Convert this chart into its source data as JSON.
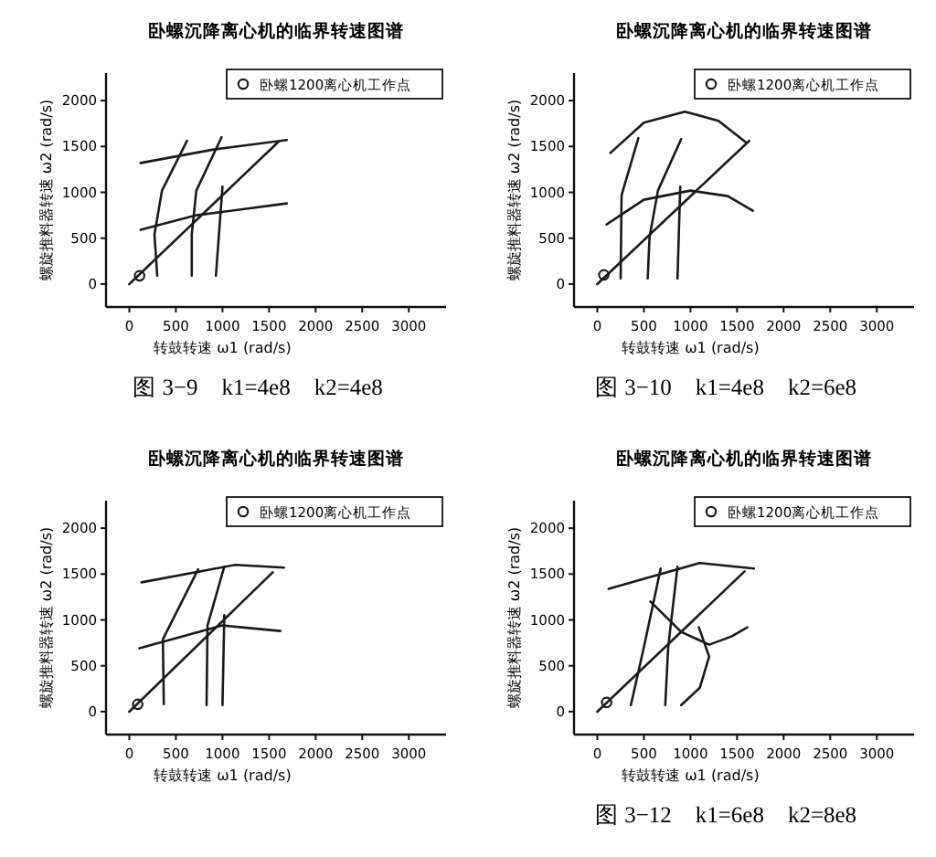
{
  "chart_data": [
    {
      "type": "line",
      "title": "卧螺沉降离心机的临界转速图谱",
      "xlabel": "转鼓转速 ω1 (rad/s)",
      "ylabel": "螺旋推料器转速 ω2 (rad/s)",
      "xlim": [
        -250,
        3400
      ],
      "ylim": [
        -250,
        2300
      ],
      "xticks": [
        0,
        500,
        1000,
        1500,
        2000,
        2500,
        3000
      ],
      "yticks": [
        0,
        500,
        1000,
        1500,
        2000
      ],
      "grid": false,
      "legend": "top right",
      "annotations": [
        "图 3−9　k1=4e8　k2=4e8"
      ],
      "series": [
        {
          "color": "#1a1a1a",
          "x": [
            120,
            920,
            1690
          ],
          "values": [
            1320,
            1470,
            1570
          ]
        },
        {
          "color": "#1a1a1a",
          "x": [
            120,
            720,
            1690
          ],
          "values": [
            590,
            750,
            880
          ]
        },
        {
          "color": "#1a1a1a",
          "x": [
            0,
            1600
          ],
          "values": [
            0,
            1550
          ]
        },
        {
          "color": "#1a1a1a",
          "x": [
            620,
            350,
            270,
            300
          ],
          "values": [
            1560,
            1020,
            540,
            90
          ]
        },
        {
          "color": "#1a1a1a",
          "x": [
            990,
            720,
            670,
            670
          ],
          "values": [
            1600,
            1020,
            540,
            90
          ]
        },
        {
          "color": "#1a1a1a",
          "x": [
            1000,
            930
          ],
          "values": [
            1060,
            90
          ]
        },
        {
          "type": "scatter",
          "name": "卧螺1200离心机工作点",
          "marker": "circle",
          "color": "#1a1a1a",
          "x": [
            110
          ],
          "values": [
            90
          ]
        }
      ]
    },
    {
      "type": "line",
      "title": "卧螺沉降离心机的临界转速图谱",
      "xlabel": "转鼓转速 ω1 (rad/s)",
      "ylabel": "螺旋推料器转速 ω2 (rad/s)",
      "xlim": [
        -250,
        3400
      ],
      "ylim": [
        -250,
        2300
      ],
      "xticks": [
        0,
        500,
        1000,
        1500,
        2000,
        2500,
        3000
      ],
      "yticks": [
        0,
        500,
        1000,
        1500,
        2000
      ],
      "grid": false,
      "legend": "top right",
      "annotations": [
        "图 3−10　k1=4e8　k2=6e8"
      ],
      "series": [
        {
          "color": "#1a1a1a",
          "x": [
            140,
            500,
            940,
            1300,
            1600
          ],
          "values": [
            1430,
            1760,
            1880,
            1780,
            1540
          ]
        },
        {
          "color": "#1a1a1a",
          "x": [
            100,
            500,
            1000,
            1400,
            1670
          ],
          "values": [
            650,
            920,
            1020,
            960,
            800
          ]
        },
        {
          "color": "#1a1a1a",
          "x": [
            0,
            1630
          ],
          "values": [
            0,
            1560
          ]
        },
        {
          "color": "#1a1a1a",
          "x": [
            440,
            260,
            250
          ],
          "values": [
            1590,
            970,
            60
          ]
        },
        {
          "color": "#1a1a1a",
          "x": [
            900,
            650,
            560,
            540
          ],
          "values": [
            1580,
            1020,
            510,
            60
          ]
        },
        {
          "color": "#1a1a1a",
          "x": [
            890,
            860
          ],
          "values": [
            1060,
            60
          ]
        },
        {
          "type": "scatter",
          "name": "卧螺1200离心机工作点",
          "marker": "circle",
          "color": "#1a1a1a",
          "x": [
            70
          ],
          "values": [
            100
          ]
        }
      ]
    },
    {
      "type": "line",
      "title": "卧螺沉降离心机的临界转速图谱",
      "xlabel": "转鼓转速 ω1 (rad/s)",
      "ylabel": "螺旋推料器转速 ω2 (rad/s)",
      "xlim": [
        -250,
        3400
      ],
      "ylim": [
        -250,
        2300
      ],
      "xticks": [
        0,
        500,
        1000,
        1500,
        2000,
        2500,
        3000
      ],
      "yticks": [
        0,
        500,
        1000,
        1500,
        2000
      ],
      "grid": false,
      "legend": "top right",
      "series": [
        {
          "color": "#1a1a1a",
          "x": [
            130,
            1140,
            1660
          ],
          "values": [
            1410,
            1600,
            1570
          ]
        },
        {
          "color": "#1a1a1a",
          "x": [
            110,
            1000,
            1620
          ],
          "values": [
            690,
            940,
            880
          ]
        },
        {
          "color": "#1a1a1a",
          "x": [
            0,
            1540
          ],
          "values": [
            0,
            1520
          ]
        },
        {
          "color": "#1a1a1a",
          "x": [
            740,
            360,
            370
          ],
          "values": [
            1550,
            790,
            80
          ]
        },
        {
          "color": "#1a1a1a",
          "x": [
            1020,
            840,
            830
          ],
          "values": [
            1580,
            940,
            70
          ]
        },
        {
          "color": "#1a1a1a",
          "x": [
            1020,
            1000
          ],
          "values": [
            1050,
            70
          ]
        },
        {
          "type": "scatter",
          "name": "卧螺1200离心机工作点",
          "marker": "circle",
          "color": "#1a1a1a",
          "x": [
            90
          ],
          "values": [
            80
          ]
        }
      ]
    },
    {
      "type": "line",
      "title": "卧螺沉降离心机的临界转速图谱",
      "xlabel": "转鼓转速 ω1 (rad/s)",
      "ylabel": "螺旋推料器转速 ω2 (rad/s)",
      "xlim": [
        -250,
        3400
      ],
      "ylim": [
        -250,
        2300
      ],
      "xticks": [
        0,
        500,
        1000,
        1500,
        2000,
        2500,
        3000
      ],
      "yticks": [
        0,
        500,
        1000,
        1500,
        2000
      ],
      "grid": false,
      "legend": "top right",
      "annotations": [
        "图 3−12　k1=6e8　k2=8e8"
      ],
      "series": [
        {
          "color": "#1a1a1a",
          "x": [
            120,
            1100,
            1680
          ],
          "values": [
            1340,
            1620,
            1560
          ]
        },
        {
          "color": "#1a1a1a",
          "x": [
            0,
            1580
          ],
          "values": [
            0,
            1530
          ]
        },
        {
          "color": "#1a1a1a",
          "x": [
            680,
            500,
            360
          ],
          "values": [
            1560,
            700,
            70
          ]
        },
        {
          "color": "#1a1a1a",
          "x": [
            860,
            760,
            730
          ],
          "values": [
            1580,
            700,
            70
          ]
        },
        {
          "color": "#1a1a1a",
          "x": [
            570,
            900,
            1200,
            1440,
            1610
          ],
          "values": [
            1200,
            870,
            730,
            820,
            920
          ]
        },
        {
          "color": "#1a1a1a",
          "x": [
            1090,
            1200,
            1100,
            900
          ],
          "values": [
            920,
            600,
            260,
            70
          ]
        },
        {
          "type": "scatter",
          "name": "卧螺1200离心机工作点",
          "marker": "circle",
          "color": "#1a1a1a",
          "x": [
            100
          ],
          "values": [
            100
          ]
        }
      ]
    }
  ]
}
